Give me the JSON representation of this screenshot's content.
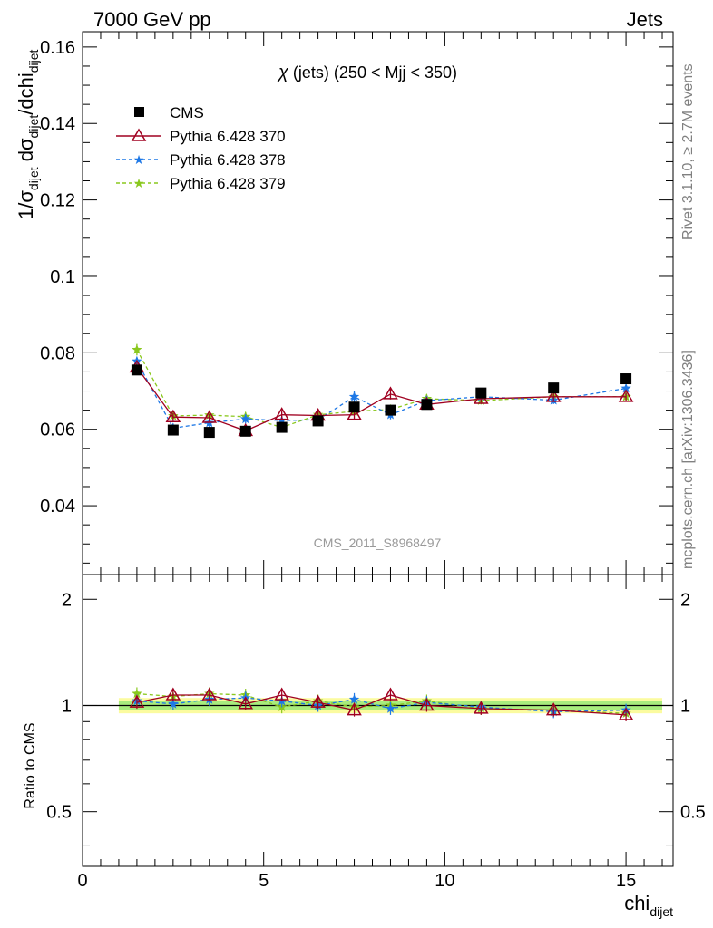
{
  "header": {
    "left": "7000 GeV pp",
    "right": "Jets",
    "side_rivet": "Rivet 3.1.10, ≥ 2.7M events",
    "side_mcplots": "mcplots.cern.ch [arXiv:1306.3436]",
    "watermark": "CMS_2011_S8968497"
  },
  "top_panel": {
    "title_chi": "χ",
    "title_rest": " (jets) (250 < Mjj <  350)",
    "ylabel": "1/σ",
    "ylabel_sub1": "dijet",
    "ylabel_mid": " dσ",
    "ylabel_sub2": "dijet",
    "ylabel_end": "/dchi",
    "ylabel_sub3": "dijet",
    "ylim": [
      0.022,
      0.164
    ],
    "yticks": [
      "0.04",
      "0.06",
      "0.08",
      "0.1",
      "0.12",
      "0.14",
      "0.16"
    ]
  },
  "bottom_panel": {
    "ylabel": "Ratio to CMS",
    "yticks": [
      "0.5",
      "1",
      "2"
    ],
    "ylim": [
      0.35,
      2.35
    ],
    "log_scale": true
  },
  "xaxis": {
    "label": "chi",
    "label_sub": "dijet",
    "xlim": [
      0,
      16.3
    ],
    "ticks": [
      "0",
      "5",
      "10",
      "15"
    ]
  },
  "legend": [
    {
      "label": "CMS",
      "color": "#000000",
      "marker": "square"
    },
    {
      "label": "Pythia 6.428 370",
      "color": "#a00020",
      "marker": "triangle-open"
    },
    {
      "label": "Pythia 6.428 378",
      "color": "#1e78e6",
      "marker": "star"
    },
    {
      "label": "Pythia 6.428 379",
      "color": "#8ac81e",
      "marker": "star"
    }
  ],
  "chart_data": {
    "type": "scatter",
    "x": [
      1.5,
      2.5,
      3.5,
      4.5,
      5.5,
      6.5,
      7.5,
      8.5,
      9.5,
      11,
      13,
      15
    ],
    "xedges": [
      1,
      2,
      3,
      4,
      5,
      6,
      7,
      8,
      9,
      10,
      12,
      14,
      16
    ],
    "series": [
      {
        "name": "CMS",
        "values": [
          0.0755,
          0.0598,
          0.0592,
          0.0595,
          0.0605,
          0.0622,
          0.0658,
          0.065,
          0.0665,
          0.0695,
          0.0708,
          0.0732
        ]
      },
      {
        "name": "Pythia 6.428 370",
        "values": [
          0.0762,
          0.0632,
          0.063,
          0.0596,
          0.0638,
          0.0636,
          0.0638,
          0.0692,
          0.0665,
          0.068,
          0.0685,
          0.0685
        ],
        "errors": [
          0.001,
          0.001,
          0.001,
          0.001,
          0.0012,
          0.0012,
          0.0012,
          0.0014,
          0.0012,
          0.001,
          0.001,
          0.001
        ]
      },
      {
        "name": "Pythia 6.428 378",
        "values": [
          0.0778,
          0.0603,
          0.0617,
          0.0627,
          0.0623,
          0.0625,
          0.0685,
          0.0638,
          0.0675,
          0.0685,
          0.0676,
          0.0707
        ],
        "errors": [
          0.001,
          0.0012,
          0.0012,
          0.0012,
          0.0012,
          0.0015,
          0.0015,
          0.0012,
          0.0012,
          0.001,
          0.001,
          0.001
        ]
      },
      {
        "name": "Pythia 6.428 379",
        "values": [
          0.0808,
          0.0635,
          0.0637,
          0.0633,
          0.0605,
          0.0638,
          0.0647,
          0.0652,
          0.068,
          0.0675,
          0.0685,
          0.0685
        ],
        "errors": [
          0.0015,
          0.0012,
          0.0012,
          0.0012,
          0.0012,
          0.0012,
          0.0012,
          0.0012,
          0.0012,
          0.001,
          0.001,
          0.001
        ]
      }
    ],
    "ratio": {
      "reference": "CMS",
      "band_inner": 0.03,
      "band_outer": 0.05,
      "series": [
        {
          "name": "Pythia 6.428 370",
          "values": [
            1.02,
            1.07,
            1.07,
            1.01,
            1.07,
            1.02,
            0.97,
            1.07,
            1.0,
            0.98,
            0.97,
            0.94
          ]
        },
        {
          "name": "Pythia 6.428 378",
          "values": [
            1.03,
            1.01,
            1.04,
            1.05,
            1.03,
            1.0,
            1.04,
            0.98,
            1.02,
            0.99,
            0.96,
            0.97
          ]
        },
        {
          "name": "Pythia 6.428 379",
          "values": [
            1.08,
            1.06,
            1.08,
            1.07,
            0.99,
            1.03,
            0.99,
            1.0,
            1.03,
            0.98,
            0.97,
            0.95
          ]
        }
      ]
    }
  }
}
